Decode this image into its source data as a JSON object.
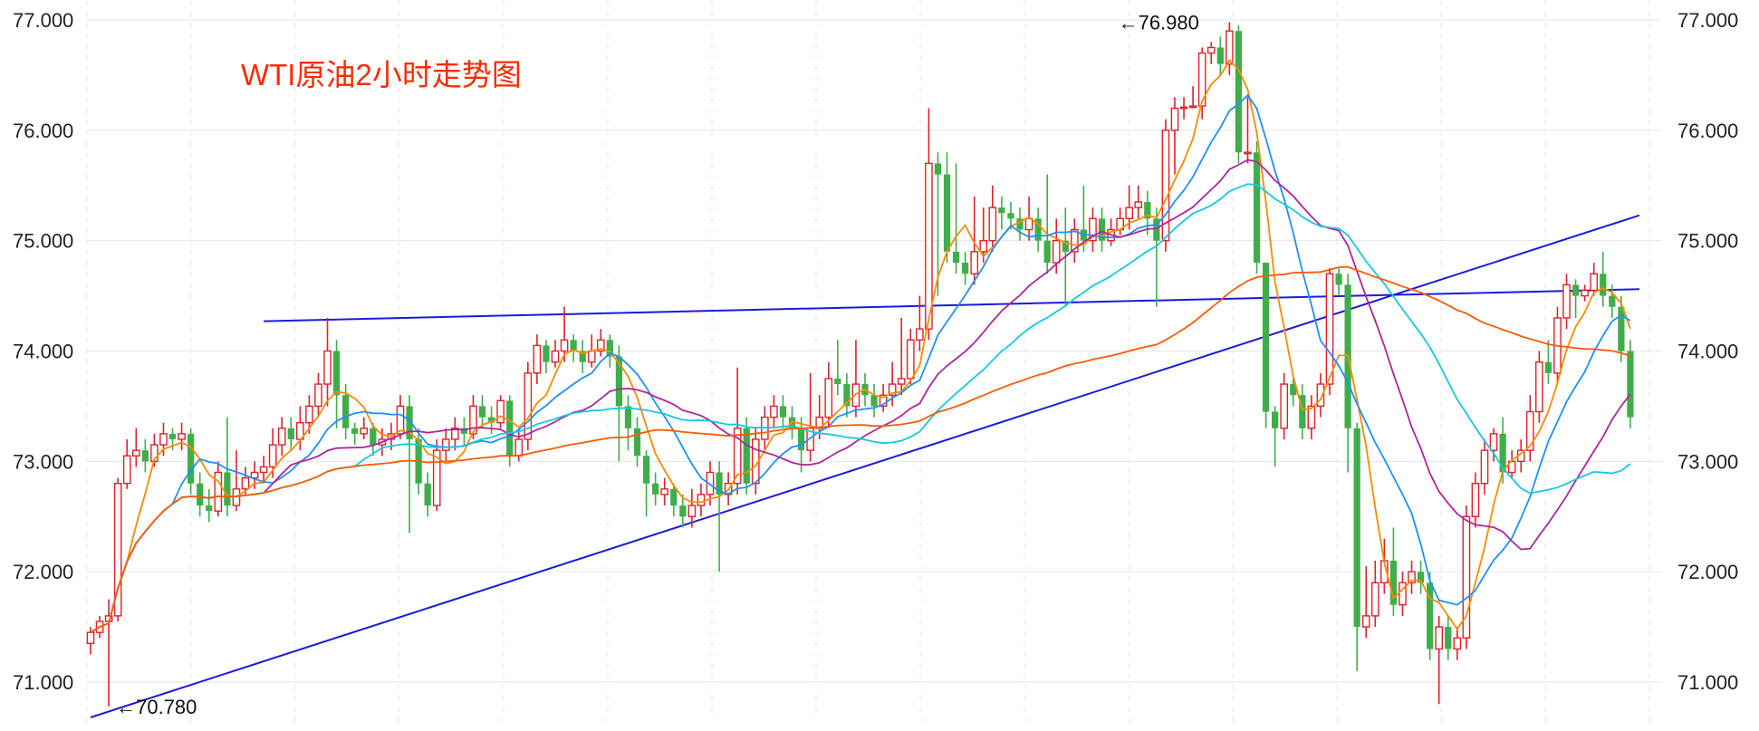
{
  "chart_data": {
    "type": "candlestick",
    "title": "WTI原油2小时走势图",
    "ylim": [
      70.6,
      77.1
    ],
    "y_ticks": [
      "71.000",
      "72.000",
      "73.000",
      "74.000",
      "75.000",
      "76.000",
      "77.000"
    ],
    "y_tick_values": [
      71,
      72,
      73,
      74,
      75,
      76,
      77
    ],
    "x_count": 171,
    "grid": true,
    "colors": {
      "up": "#e0202a",
      "down": "#3fae4a",
      "trendline": "#1a1ae0",
      "grid": "#e6e6e6",
      "title": "#ff2a00"
    },
    "annotations": [
      {
        "text": "←70.780",
        "value": 70.78,
        "index": 2
      },
      {
        "text": "←76.980",
        "value": 76.98,
        "index": 112
      }
    ],
    "trendlines": [
      {
        "name": "rising-support",
        "points": [
          [
            0,
            70.68
          ],
          [
            170,
            75.23
          ]
        ]
      },
      {
        "name": "horizontal-resistance",
        "points": [
          [
            19,
            74.27
          ],
          [
            170,
            74.56
          ]
        ]
      }
    ],
    "candles": [
      [
        71.35,
        71.45,
        71.25,
        71.5
      ],
      [
        71.45,
        71.55,
        71.4,
        71.6
      ],
      [
        71.55,
        71.6,
        70.78,
        71.75
      ],
      [
        71.6,
        72.8,
        71.55,
        72.85
      ],
      [
        72.8,
        73.05,
        72.75,
        73.2
      ],
      [
        73.05,
        73.1,
        72.95,
        73.3
      ],
      [
        73.1,
        73.0,
        72.9,
        73.2
      ],
      [
        73.0,
        73.15,
        72.95,
        73.25
      ],
      [
        73.15,
        73.25,
        73.05,
        73.35
      ],
      [
        73.25,
        73.2,
        73.1,
        73.3
      ],
      [
        73.2,
        73.25,
        73.1,
        73.35
      ],
      [
        73.25,
        72.8,
        72.7,
        73.3
      ],
      [
        72.8,
        72.6,
        72.5,
        72.9
      ],
      [
        72.6,
        72.55,
        72.45,
        72.75
      ],
      [
        72.55,
        72.9,
        72.5,
        73.0
      ],
      [
        72.9,
        72.6,
        72.5,
        73.4
      ],
      [
        72.6,
        72.75,
        72.55,
        73.1
      ],
      [
        72.75,
        72.85,
        72.7,
        72.95
      ],
      [
        72.85,
        72.9,
        72.75,
        73.0
      ],
      [
        72.9,
        72.95,
        72.8,
        73.05
      ],
      [
        72.95,
        73.15,
        72.85,
        73.3
      ],
      [
        73.15,
        73.3,
        73.05,
        73.4
      ],
      [
        73.3,
        73.2,
        73.1,
        73.4
      ],
      [
        73.2,
        73.35,
        73.1,
        73.5
      ],
      [
        73.35,
        73.5,
        73.25,
        73.6
      ],
      [
        73.5,
        73.7,
        73.4,
        73.8
      ],
      [
        73.7,
        74.0,
        73.5,
        74.3
      ],
      [
        74.0,
        73.6,
        73.3,
        74.1
      ],
      [
        73.6,
        73.3,
        73.2,
        73.7
      ],
      [
        73.3,
        73.25,
        73.15,
        73.35
      ],
      [
        73.25,
        73.3,
        73.2,
        73.4
      ],
      [
        73.3,
        73.15,
        73.05,
        73.35
      ],
      [
        73.15,
        73.2,
        73.05,
        73.3
      ],
      [
        73.2,
        73.25,
        73.1,
        73.35
      ],
      [
        73.25,
        73.5,
        73.2,
        73.6
      ],
      [
        73.5,
        73.2,
        72.35,
        73.6
      ],
      [
        73.2,
        72.8,
        72.7,
        73.3
      ],
      [
        72.8,
        72.6,
        72.5,
        72.9
      ],
      [
        72.6,
        73.1,
        72.55,
        73.2
      ],
      [
        73.1,
        73.2,
        73.0,
        73.3
      ],
      [
        73.2,
        73.3,
        73.1,
        73.4
      ],
      [
        73.3,
        73.25,
        73.15,
        73.4
      ],
      [
        73.25,
        73.5,
        73.2,
        73.6
      ],
      [
        73.5,
        73.4,
        73.3,
        73.6
      ],
      [
        73.4,
        73.35,
        73.25,
        73.5
      ],
      [
        73.35,
        73.55,
        73.3,
        73.6
      ],
      [
        73.55,
        73.05,
        72.95,
        73.6
      ],
      [
        73.05,
        73.2,
        73.0,
        73.3
      ],
      [
        73.2,
        73.8,
        73.1,
        73.9
      ],
      [
        73.8,
        74.05,
        73.7,
        74.15
      ],
      [
        74.05,
        73.9,
        73.8,
        74.1
      ],
      [
        73.9,
        74.0,
        73.85,
        74.1
      ],
      [
        74.0,
        74.1,
        73.9,
        74.4
      ],
      [
        74.1,
        74.0,
        73.9,
        74.15
      ],
      [
        74.0,
        73.9,
        73.8,
        74.1
      ],
      [
        73.9,
        74.0,
        73.85,
        74.15
      ],
      [
        74.0,
        74.1,
        73.95,
        74.2
      ],
      [
        74.1,
        73.95,
        73.85,
        74.15
      ],
      [
        73.95,
        73.5,
        73.0,
        74.05
      ],
      [
        73.5,
        73.3,
        73.1,
        73.6
      ],
      [
        73.3,
        73.05,
        72.95,
        73.4
      ],
      [
        73.05,
        72.8,
        72.5,
        73.1
      ],
      [
        72.8,
        72.7,
        72.6,
        72.9
      ],
      [
        72.7,
        72.75,
        72.6,
        72.85
      ],
      [
        72.75,
        72.6,
        72.5,
        72.8
      ],
      [
        72.6,
        72.5,
        72.4,
        72.7
      ],
      [
        72.5,
        72.6,
        72.4,
        72.75
      ],
      [
        72.6,
        72.7,
        72.5,
        72.8
      ],
      [
        72.7,
        72.9,
        72.6,
        73.0
      ],
      [
        72.9,
        72.7,
        72.0,
        73.0
      ],
      [
        72.7,
        72.8,
        72.6,
        72.9
      ],
      [
        72.8,
        73.3,
        72.7,
        73.85
      ],
      [
        73.3,
        72.8,
        72.7,
        73.4
      ],
      [
        72.8,
        73.2,
        72.7,
        73.3
      ],
      [
        73.2,
        73.4,
        73.1,
        73.5
      ],
      [
        73.4,
        73.5,
        73.3,
        73.6
      ],
      [
        73.5,
        73.4,
        73.3,
        73.6
      ],
      [
        73.4,
        73.3,
        73.2,
        73.5
      ],
      [
        73.3,
        73.1,
        72.9,
        73.4
      ],
      [
        73.1,
        73.3,
        73.0,
        73.8
      ],
      [
        73.3,
        73.4,
        73.2,
        73.6
      ],
      [
        73.4,
        73.75,
        73.3,
        73.9
      ],
      [
        73.75,
        73.7,
        73.6,
        74.1
      ],
      [
        73.7,
        73.5,
        73.4,
        73.8
      ],
      [
        73.5,
        73.7,
        73.4,
        74.1
      ],
      [
        73.7,
        73.6,
        73.5,
        73.8
      ],
      [
        73.6,
        73.5,
        73.4,
        73.7
      ],
      [
        73.5,
        73.6,
        73.45,
        73.7
      ],
      [
        73.6,
        73.7,
        73.5,
        73.9
      ],
      [
        73.7,
        73.75,
        73.6,
        74.3
      ],
      [
        73.75,
        74.1,
        73.7,
        74.2
      ],
      [
        74.1,
        74.2,
        74.0,
        74.5
      ],
      [
        74.2,
        75.7,
        74.1,
        76.2
      ],
      [
        75.7,
        75.6,
        74.5,
        75.8
      ],
      [
        75.6,
        74.9,
        74.8,
        75.8
      ],
      [
        74.9,
        74.8,
        74.7,
        75.7
      ],
      [
        74.8,
        74.7,
        74.6,
        74.9
      ],
      [
        74.7,
        74.9,
        74.6,
        75.4
      ],
      [
        74.9,
        75.0,
        74.8,
        75.3
      ],
      [
        75.0,
        75.3,
        74.9,
        75.5
      ],
      [
        75.3,
        75.25,
        75.1,
        75.4
      ],
      [
        75.25,
        75.2,
        75.1,
        75.35
      ],
      [
        75.2,
        75.1,
        75.0,
        75.3
      ],
      [
        75.1,
        75.2,
        75.0,
        75.4
      ],
      [
        75.2,
        75.0,
        74.9,
        75.3
      ],
      [
        75.0,
        74.8,
        74.7,
        75.6
      ],
      [
        74.8,
        75.0,
        74.7,
        75.2
      ],
      [
        75.0,
        74.9,
        74.4,
        75.3
      ],
      [
        74.9,
        75.1,
        74.8,
        75.2
      ],
      [
        75.1,
        75.0,
        74.9,
        75.5
      ],
      [
        75.0,
        75.2,
        74.9,
        75.3
      ],
      [
        75.2,
        75.0,
        74.9,
        75.3
      ],
      [
        75.0,
        75.1,
        74.95,
        75.2
      ],
      [
        75.1,
        75.2,
        75.05,
        75.3
      ],
      [
        75.2,
        75.3,
        75.1,
        75.5
      ],
      [
        75.3,
        75.35,
        75.2,
        75.5
      ],
      [
        75.35,
        75.2,
        75.05,
        75.45
      ],
      [
        75.2,
        75.0,
        74.4,
        75.3
      ],
      [
        75.0,
        76.0,
        74.9,
        76.1
      ],
      [
        76.0,
        76.2,
        75.6,
        76.3
      ],
      [
        76.2,
        76.21,
        76.1,
        76.3
      ],
      [
        76.21,
        76.22,
        76.2,
        76.4
      ],
      [
        76.22,
        76.7,
        76.1,
        76.75
      ],
      [
        76.7,
        76.75,
        76.6,
        76.8
      ],
      [
        76.75,
        76.6,
        76.5,
        76.85
      ],
      [
        76.6,
        76.9,
        76.5,
        76.98
      ],
      [
        76.9,
        75.8,
        75.7,
        76.95
      ],
      [
        75.8,
        75.8,
        75.7,
        76.3
      ],
      [
        75.8,
        74.8,
        74.7,
        75.9
      ],
      [
        74.8,
        73.45,
        73.3,
        74.8
      ],
      [
        73.45,
        73.3,
        72.95,
        73.5
      ],
      [
        73.3,
        73.7,
        73.2,
        73.8
      ],
      [
        73.7,
        73.6,
        73.5,
        73.75
      ],
      [
        73.6,
        73.3,
        73.2,
        73.7
      ],
      [
        73.3,
        73.5,
        73.2,
        73.6
      ],
      [
        73.5,
        73.7,
        73.4,
        73.8
      ],
      [
        73.7,
        74.7,
        73.6,
        74.75
      ],
      [
        74.7,
        74.6,
        74.5,
        74.75
      ],
      [
        74.6,
        73.3,
        72.9,
        74.7
      ],
      [
        73.3,
        71.5,
        71.1,
        73.35
      ],
      [
        71.5,
        71.6,
        71.4,
        72.05
      ],
      [
        71.6,
        71.9,
        71.5,
        72.1
      ],
      [
        71.9,
        72.1,
        71.8,
        72.3
      ],
      [
        72.1,
        71.7,
        71.6,
        72.4
      ],
      [
        71.7,
        71.9,
        71.6,
        72.0
      ],
      [
        71.9,
        72.0,
        71.8,
        72.1
      ],
      [
        72.0,
        71.9,
        71.8,
        72.1
      ],
      [
        71.9,
        71.3,
        71.2,
        72.0
      ],
      [
        71.3,
        71.5,
        70.8,
        71.6
      ],
      [
        71.5,
        71.3,
        71.2,
        71.6
      ],
      [
        71.3,
        71.4,
        71.2,
        71.5
      ],
      [
        71.4,
        72.5,
        71.3,
        72.6
      ],
      [
        72.5,
        72.8,
        72.4,
        72.9
      ],
      [
        72.8,
        73.1,
        72.7,
        73.2
      ],
      [
        73.1,
        73.25,
        73.0,
        73.3
      ],
      [
        73.25,
        72.9,
        72.8,
        73.4
      ],
      [
        72.9,
        73.0,
        72.85,
        73.1
      ],
      [
        73.0,
        73.1,
        72.9,
        73.2
      ],
      [
        73.1,
        73.45,
        73.0,
        73.6
      ],
      [
        73.45,
        73.9,
        73.35,
        74.0
      ],
      [
        73.9,
        73.8,
        73.7,
        74.1
      ],
      [
        73.8,
        74.3,
        73.7,
        74.4
      ],
      [
        74.3,
        74.6,
        74.2,
        74.7
      ],
      [
        74.6,
        74.5,
        74.3,
        74.65
      ],
      [
        74.5,
        74.55,
        74.45,
        74.6
      ],
      [
        74.55,
        74.7,
        74.5,
        74.8
      ],
      [
        74.7,
        74.5,
        74.4,
        74.9
      ],
      [
        74.5,
        74.4,
        74.3,
        74.6
      ],
      [
        74.4,
        74.0,
        73.9,
        74.5
      ],
      [
        74.0,
        73.4,
        73.3,
        74.1
      ]
    ]
  }
}
